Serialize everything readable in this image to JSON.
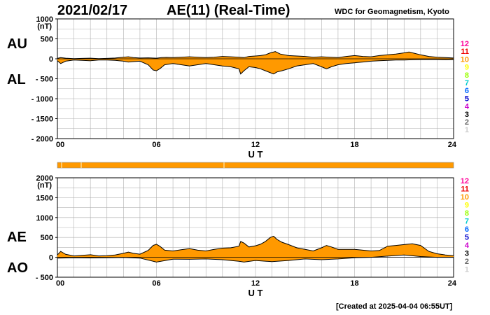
{
  "header": {
    "date": "2021/02/17",
    "title": "AE(11) (Real-Time)",
    "source": "WDC for Geomagnetism, Kyoto"
  },
  "footer": {
    "created": "[Created at 2025-04-04 06:55UT]"
  },
  "labels": {
    "au": "AU",
    "al": "AL",
    "ae": "AE",
    "ao": "AO"
  },
  "station_scale": {
    "numbers": [
      "12",
      "11",
      "10",
      "9",
      "8",
      "7",
      "6",
      "5",
      "4",
      "3",
      "2",
      "1"
    ],
    "colors": [
      "#ff0099",
      "#ee0000",
      "#ff9900",
      "#ffff00",
      "#99ff00",
      "#00cccc",
      "#0066ff",
      "#0000cc",
      "#cc00cc",
      "#000000",
      "#666666",
      "#cccccc"
    ]
  },
  "colors": {
    "fill": "#ff9900",
    "line": "#000000",
    "grid": "#b0b0b0",
    "bar": "#ff9900"
  },
  "chart_data": [
    {
      "type": "area",
      "panel": "AU/AL",
      "unit": "(nT)",
      "xlabel": "U T",
      "xlim": [
        0,
        24
      ],
      "xticks": [
        "00",
        "06",
        "12",
        "18",
        "24"
      ],
      "ylim": [
        -2000,
        1000
      ],
      "yticks": [
        "1000",
        "500",
        "0",
        "- 500",
        "- 1000",
        "- 1500",
        "- 2000"
      ],
      "ytick_values": [
        1000,
        500,
        0,
        -500,
        -1000,
        -1500,
        -2000
      ],
      "grid": true,
      "series": [
        {
          "name": "AU",
          "x": [
            0,
            0.2,
            0.5,
            1,
            1.5,
            2,
            2.5,
            3,
            3.5,
            4,
            4.3,
            4.6,
            5,
            5.5,
            6,
            6.3,
            6.6,
            7,
            7.5,
            8,
            8.5,
            9,
            9.5,
            10,
            10.5,
            11,
            11.3,
            11.6,
            12,
            12.3,
            12.6,
            12.9,
            13.2,
            13.5,
            14,
            14.5,
            15,
            15.5,
            16,
            16.5,
            17,
            17.5,
            18,
            18.5,
            19,
            19.5,
            20,
            20.5,
            21,
            21.3,
            21.6,
            22,
            22.5,
            23,
            23.5,
            24
          ],
          "values": [
            10,
            30,
            15,
            5,
            10,
            15,
            5,
            10,
            20,
            40,
            50,
            30,
            20,
            25,
            15,
            30,
            35,
            30,
            40,
            50,
            40,
            30,
            40,
            60,
            50,
            40,
            30,
            60,
            70,
            80,
            100,
            150,
            180,
            120,
            80,
            70,
            60,
            40,
            50,
            40,
            30,
            60,
            80,
            60,
            50,
            80,
            100,
            120,
            150,
            170,
            140,
            100,
            60,
            40,
            30,
            20
          ]
        },
        {
          "name": "AL",
          "x": [
            0,
            0.2,
            0.5,
            1,
            1.5,
            2,
            2.5,
            3,
            3.5,
            4,
            4.3,
            4.6,
            5,
            5.5,
            5.8,
            6,
            6.2,
            6.5,
            7,
            7.5,
            8,
            8.5,
            9,
            9.5,
            10,
            10.5,
            11,
            11.1,
            11.3,
            11.6,
            12,
            12.3,
            12.6,
            12.9,
            13.1,
            13.3,
            13.6,
            14,
            14.5,
            15,
            15.5,
            16,
            16.3,
            16.6,
            17,
            17.5,
            18,
            18.5,
            19,
            19.5,
            20,
            20.5,
            21,
            21.5,
            22,
            22.5,
            23,
            23.5,
            24
          ],
          "values": [
            -50,
            -120,
            -60,
            -30,
            -40,
            -50,
            -30,
            -30,
            -40,
            -60,
            -80,
            -70,
            -60,
            -150,
            -280,
            -300,
            -250,
            -150,
            -120,
            -150,
            -180,
            -150,
            -120,
            -150,
            -180,
            -200,
            -250,
            -380,
            -300,
            -200,
            -220,
            -250,
            -300,
            -350,
            -380,
            -330,
            -300,
            -250,
            -180,
            -150,
            -120,
            -200,
            -250,
            -200,
            -150,
            -120,
            -100,
            -80,
            -60,
            -50,
            -40,
            -30,
            -30,
            -25,
            -20,
            -20,
            -20,
            -25,
            -20
          ]
        }
      ]
    },
    {
      "type": "area",
      "panel": "AE/AO",
      "unit": "(nT)",
      "xlabel": "U T",
      "xlim": [
        0,
        24
      ],
      "xticks": [
        "00",
        "06",
        "12",
        "18",
        "24"
      ],
      "ylim": [
        -500,
        2000
      ],
      "yticks": [
        "2000",
        "1500",
        "1000",
        "500",
        "0",
        "- 500"
      ],
      "ytick_values": [
        2000,
        1500,
        1000,
        500,
        0,
        -500
      ],
      "grid": true,
      "series": [
        {
          "name": "AE",
          "x": [
            0,
            0.2,
            0.5,
            1,
            1.5,
            2,
            2.5,
            3,
            3.5,
            4,
            4.3,
            4.6,
            5,
            5.5,
            5.8,
            6,
            6.2,
            6.5,
            7,
            7.5,
            8,
            8.5,
            9,
            9.5,
            10,
            10.5,
            11,
            11.1,
            11.3,
            11.6,
            12,
            12.3,
            12.6,
            12.9,
            13.1,
            13.3,
            13.6,
            14,
            14.5,
            15,
            15.5,
            16,
            16.3,
            16.6,
            17,
            17.5,
            18,
            18.5,
            19,
            19.5,
            20,
            20.5,
            21,
            21.5,
            22,
            22.5,
            23,
            23.5,
            24
          ],
          "values": [
            60,
            150,
            75,
            35,
            50,
            65,
            35,
            40,
            60,
            100,
            130,
            100,
            80,
            175,
            300,
            330,
            280,
            180,
            160,
            190,
            220,
            180,
            160,
            200,
            230,
            240,
            280,
            400,
            360,
            260,
            290,
            330,
            400,
            500,
            530,
            450,
            380,
            320,
            240,
            200,
            160,
            240,
            300,
            260,
            200,
            200,
            200,
            180,
            160,
            170,
            280,
            300,
            320,
            340,
            300,
            150,
            90,
            60,
            40
          ]
        },
        {
          "name": "AO",
          "x": [
            0,
            1,
            2,
            3,
            4,
            5,
            6,
            7,
            8,
            9,
            10,
            11,
            11.3,
            12,
            13,
            14,
            15,
            16,
            17,
            18,
            19,
            20,
            21,
            22,
            23,
            24
          ],
          "values": [
            -20,
            -10,
            -15,
            -10,
            -5,
            -20,
            -120,
            -45,
            -50,
            -40,
            -60,
            -100,
            -120,
            -80,
            -110,
            -80,
            -40,
            -60,
            -40,
            -10,
            0,
            30,
            60,
            20,
            0,
            0
          ]
        }
      ]
    }
  ]
}
